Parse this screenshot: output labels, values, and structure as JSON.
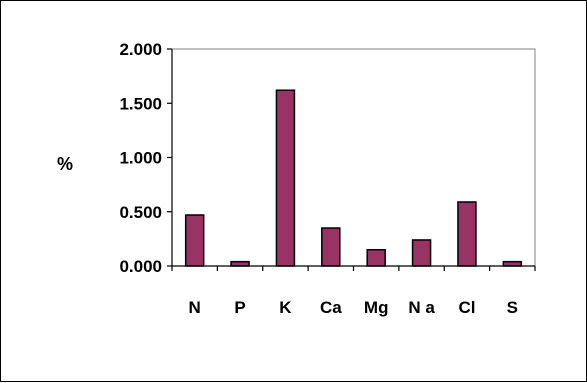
{
  "chart_data": {
    "type": "bar",
    "title": "",
    "xlabel": "",
    "ylabel": "%",
    "categories": [
      "N",
      "P",
      "K",
      "Ca",
      "Mg",
      "N a",
      "Cl",
      "S"
    ],
    "series": [
      {
        "values": [
          0.47,
          0.04,
          1.62,
          0.35,
          0.15,
          0.24,
          0.59,
          0.04
        ]
      }
    ],
    "ylim": [
      0,
      2.0
    ],
    "yticks": [
      "0.000",
      "0.500",
      "1.000",
      "1.500",
      "2.000"
    ],
    "grid": false,
    "legend": "none",
    "colors": {
      "bar": "#993366",
      "bar_border": "#000000",
      "axis": "#000000",
      "plot_border": "#808080"
    }
  }
}
